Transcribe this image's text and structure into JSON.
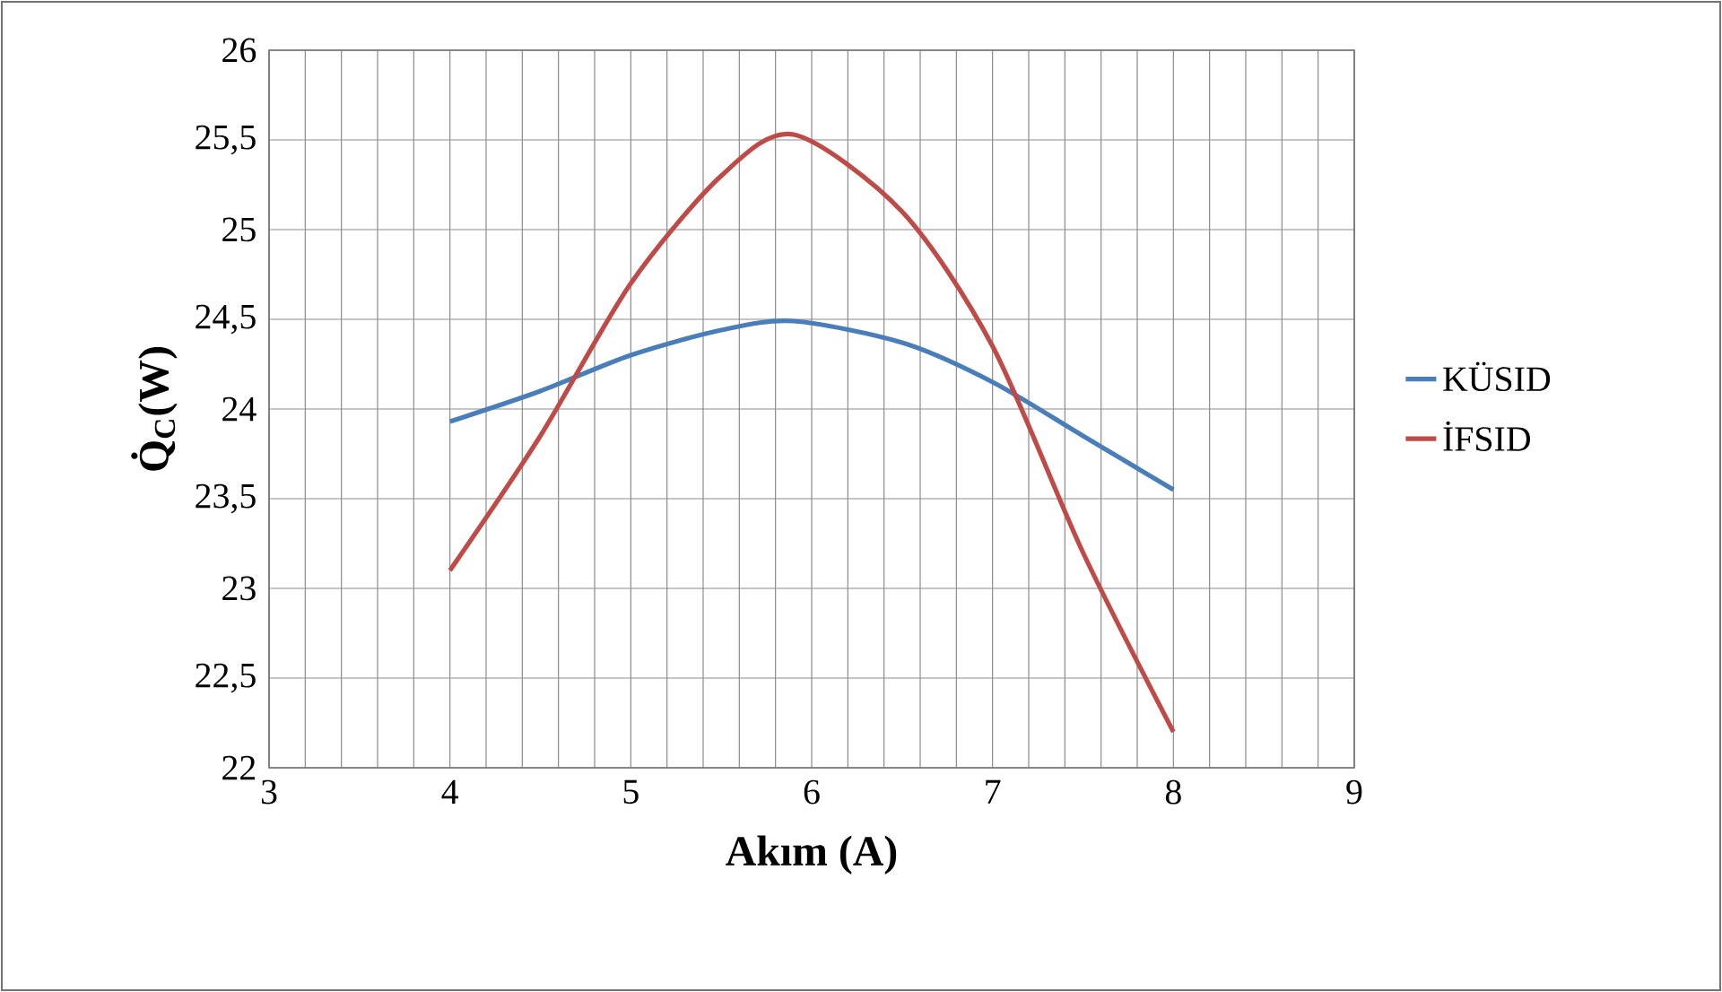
{
  "chart_data": {
    "type": "line",
    "xlabel": "Akım (A)",
    "ylabel": "Q̇$_{C}$(W)",
    "xlim": [
      3,
      9
    ],
    "xticks": [
      3,
      4,
      5,
      6,
      7,
      8,
      9
    ],
    "ylim": [
      22,
      26
    ],
    "yticks": [
      22,
      {
        "value": 22.5,
        "label": "22,5"
      },
      23,
      {
        "value": 23.5,
        "label": "23,5"
      },
      24,
      {
        "value": 24.5,
        "label": "24,5"
      },
      25,
      {
        "value": 25.5,
        "label": "25,5"
      },
      26
    ],
    "grid": true,
    "legend": "right",
    "marker": "none",
    "line_style": "solid",
    "series": [
      {
        "name": "KÜSID",
        "color": "#4a7ebb",
        "x": [
          4,
          4.5,
          5,
          5.5,
          5.9,
          6.5,
          7,
          7.5,
          8
        ],
        "values": [
          23.93,
          24.1,
          24.3,
          24.44,
          24.49,
          24.37,
          24.15,
          23.85,
          23.55
        ]
      },
      {
        "name": "İFSID",
        "color": "#be4b48",
        "x": [
          4,
          4.5,
          5,
          5.5,
          5.9,
          6.5,
          7,
          7.5,
          8
        ],
        "values": [
          23.1,
          23.85,
          24.7,
          25.3,
          25.53,
          25.1,
          24.35,
          23.2,
          22.2
        ]
      }
    ]
  }
}
